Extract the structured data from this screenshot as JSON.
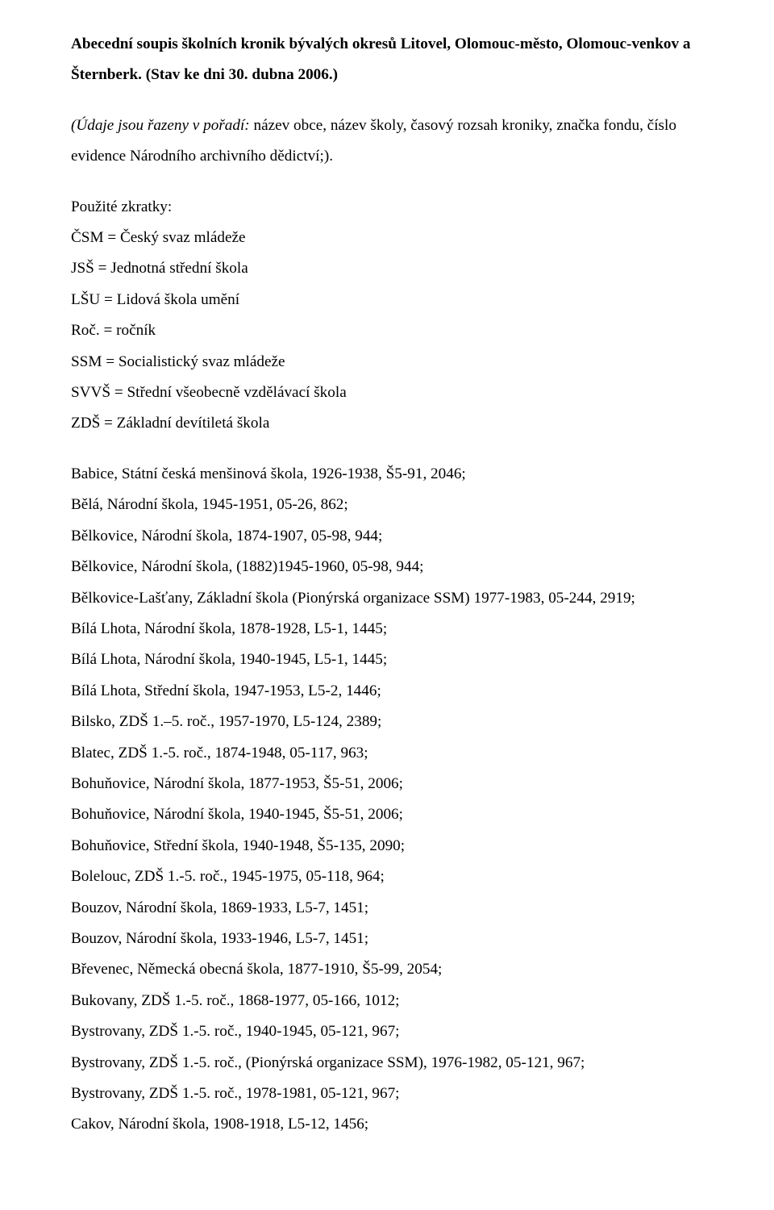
{
  "title_lines": [
    "Abecední soupis školních kronik bývalých okresů Litovel, Olomouc-město, Olomouc-venkov a",
    "Šternberk. (Stav ke dni 30. dubna 2006.)"
  ],
  "intro_italic_part": "(Údaje jsou řazeny v pořadí:",
  "intro_rest_line1_part": " název obce, název školy, časový rozsah kroniky, značka fondu, číslo",
  "intro_rest_line2": "evidence Národního archivního dědictví;).",
  "abbrev_heading": "Použité zkratky:",
  "abbreviations": [
    "ČSM  = Český svaz mládeže",
    "JSŠ    = Jednotná střední škola",
    "LŠU   = Lidová škola umění",
    "Roč.   = ročník",
    "SSM   = Socialistický svaz mládeže",
    "SVVŠ = Střední všeobecně vzdělávací škola",
    "ZDŠ    = Základní devítiletá škola"
  ],
  "entries": [
    "Babice, Státní česká menšinová škola, 1926-1938,  Š5-91, 2046;",
    "Bělá, Národní škola, 1945-1951, 05-26, 862;",
    "Bělkovice, Národní škola, 1874-1907, 05-98, 944;",
    "Bělkovice, Národní škola, (1882)1945-1960, 05-98, 944;",
    "Bělkovice-Lašťany, Základní škola (Pionýrská organizace SSM) 1977-1983,  05-244, 2919;",
    "Bílá Lhota, Národní škola, 1878-1928,  L5-1, 1445;",
    "Bílá Lhota, Národní škola, 1940-1945, L5-1, 1445;",
    "Bílá Lhota, Střední škola, 1947-1953, L5-2, 1446;",
    "Bilsko, ZDŠ 1.–5. roč., 1957-1970,  L5-124, 2389;",
    "Blatec,  ZDŠ 1.-5. roč., 1874-1948,  05-117, 963;",
    "Bohuňovice, Národní škola, 1877-1953, Š5-51, 2006;",
    "Bohuňovice, Národní škola, 1940-1945,  Š5-51, 2006;",
    "Bohuňovice, Střední škola, 1940-1948,  Š5-135, 2090;",
    "Bolelouc, ZDŠ 1.-5. roč., 1945-1975,  05-118, 964;",
    "Bouzov,  Národní škola,  1869-1933,  L5-7, 1451;",
    "Bouzov, Národní škola,  1933-1946,  L5-7, 1451;",
    "Břevenec, Německá obecná škola, 1877-1910,  Š5-99, 2054;",
    "Bukovany,  ZDŠ 1.-5. roč., 1868-1977,  05-166, 1012;",
    "Bystrovany,  ZDŠ 1.-5. roč., 1940-1945,  05-121, 967;",
    "Bystrovany,  ZDŠ 1.-5. roč.,  (Pionýrská organizace SSM), 1976-1982,  05-121, 967;",
    "Bystrovany,  ZDŠ 1.-5. roč.,  1978-1981,  05-121, 967;",
    "Cakov, Národní škola,  1908-1918,  L5-12, 1456;"
  ]
}
